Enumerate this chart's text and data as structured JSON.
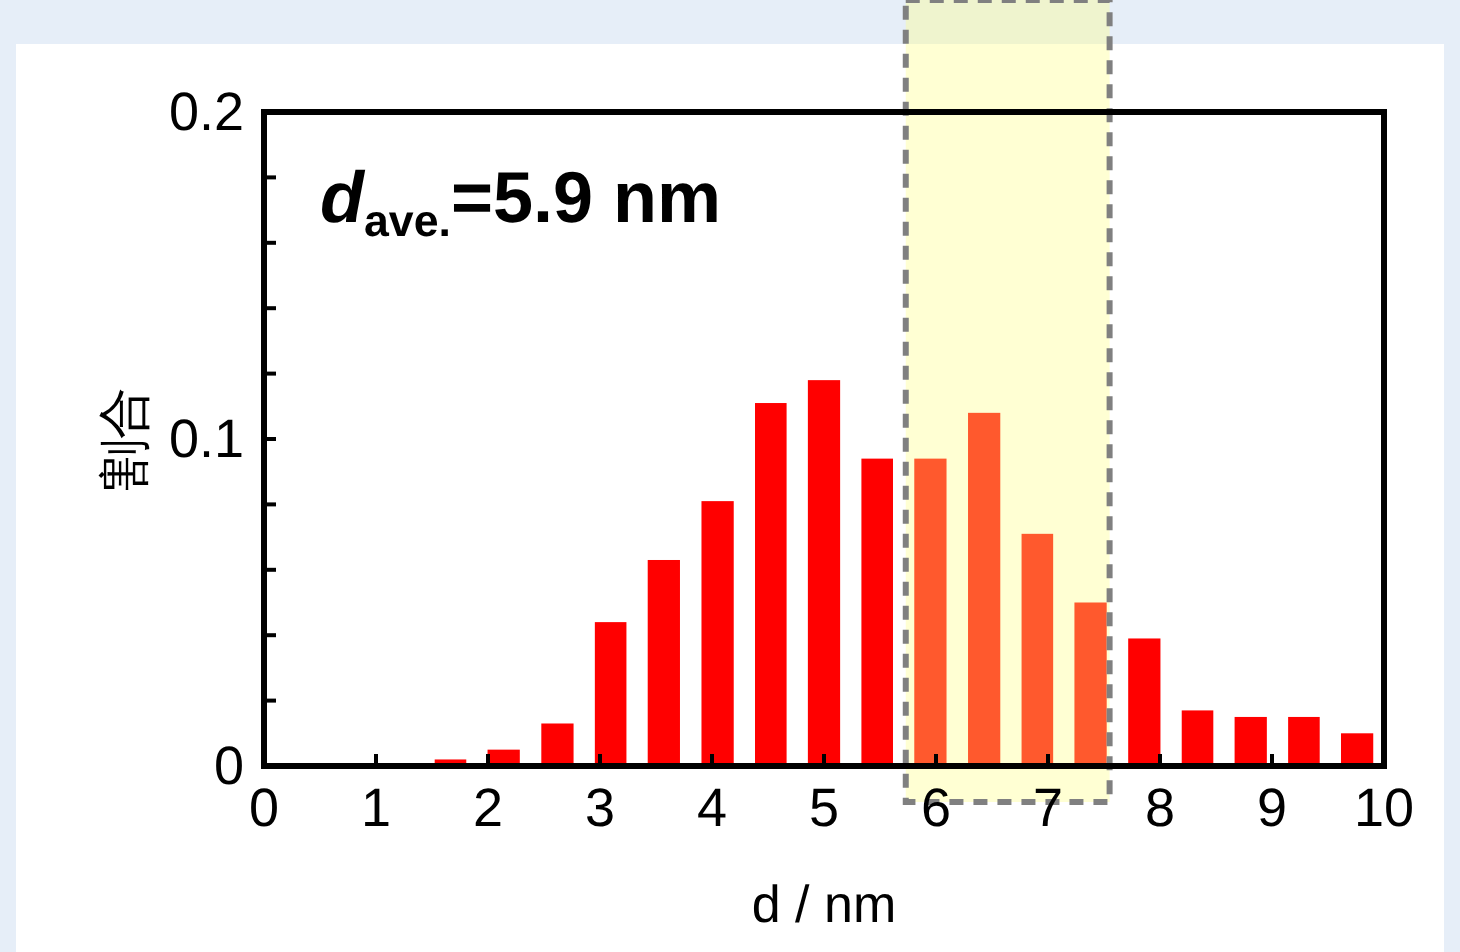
{
  "chart_data": {
    "type": "histogram",
    "xlabel": "d / nm",
    "ylabel": "割合",
    "annotations": [
      "d$_{ave.}$=5.9 nm"
    ],
    "bins": [
      1.43,
      1.9,
      2.38,
      2.86,
      3.33,
      3.81,
      4.29,
      4.76,
      5.24,
      5.71,
      6.19,
      6.67,
      7.14,
      7.62,
      8.1,
      8.57,
      9.05,
      9.52,
      10
    ],
    "values": [
      0.002,
      0.005,
      0.013,
      0.044,
      0.063,
      0.081,
      0.111,
      0.118,
      0.094,
      0.094,
      0.108,
      0.071,
      0.05,
      0.039,
      0.017,
      0.015,
      0.015,
      0.01
    ],
    "color": "#ff0000",
    "xlim": [
      0,
      10
    ],
    "xticks": [
      0,
      1,
      2,
      3,
      4,
      5,
      6,
      7,
      8,
      9,
      10
    ],
    "ylim": [
      0,
      0.2
    ],
    "yticks": [
      0,
      {
        "value": 0.02,
        "label": null
      },
      {
        "value": 0.04,
        "label": null
      },
      {
        "value": 0.06,
        "label": null
      },
      {
        "value": 0.08,
        "label": null
      },
      {
        "value": 0.1,
        "label": "0.1"
      },
      {
        "value": 0.12,
        "label": null
      },
      {
        "value": 0.14,
        "label": null
      },
      {
        "value": 0.16,
        "label": null
      },
      {
        "value": 0.18,
        "label": null
      },
      0.2
    ],
    "bands": [
      {
        "axis": "x",
        "from": 5.73,
        "to": 7.55,
        "color": "#ffff80"
      }
    ],
    "grid": false
  }
}
